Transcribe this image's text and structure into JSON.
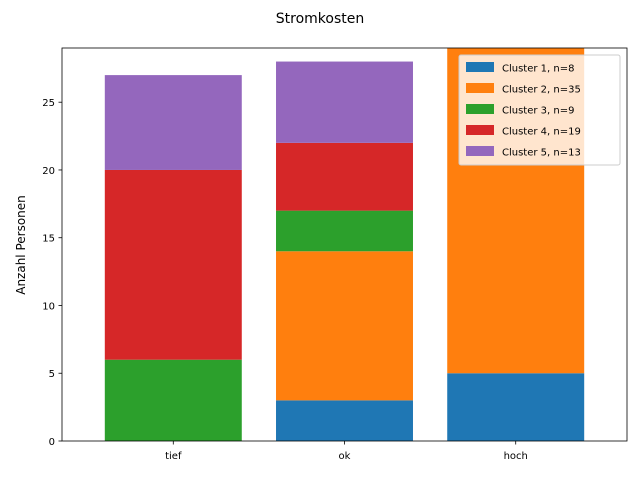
{
  "chart_data": {
    "type": "bar",
    "stacked": true,
    "title": "Stromkosten",
    "xlabel": "",
    "ylabel": "Anzahl Personen",
    "categories": [
      "tief",
      "ok",
      "hoch"
    ],
    "ylim": [
      0,
      29
    ],
    "yticks": [
      0,
      5,
      10,
      15,
      20,
      25
    ],
    "grid": false,
    "legend_position": "top-right",
    "series": [
      {
        "name": "Cluster 1, n=8",
        "color": "#1f77b4",
        "values": [
          0,
          3,
          5
        ]
      },
      {
        "name": "Cluster 2, n=35",
        "color": "#ff7f0e",
        "values": [
          0,
          11,
          24
        ]
      },
      {
        "name": "Cluster 3, n=9",
        "color": "#2ca02c",
        "values": [
          6,
          3,
          0
        ]
      },
      {
        "name": "Cluster 4, n=19",
        "color": "#d62728",
        "values": [
          14,
          5,
          0
        ]
      },
      {
        "name": "Cluster 5, n=13",
        "color": "#9467bd",
        "values": [
          7,
          6,
          0
        ]
      }
    ]
  }
}
